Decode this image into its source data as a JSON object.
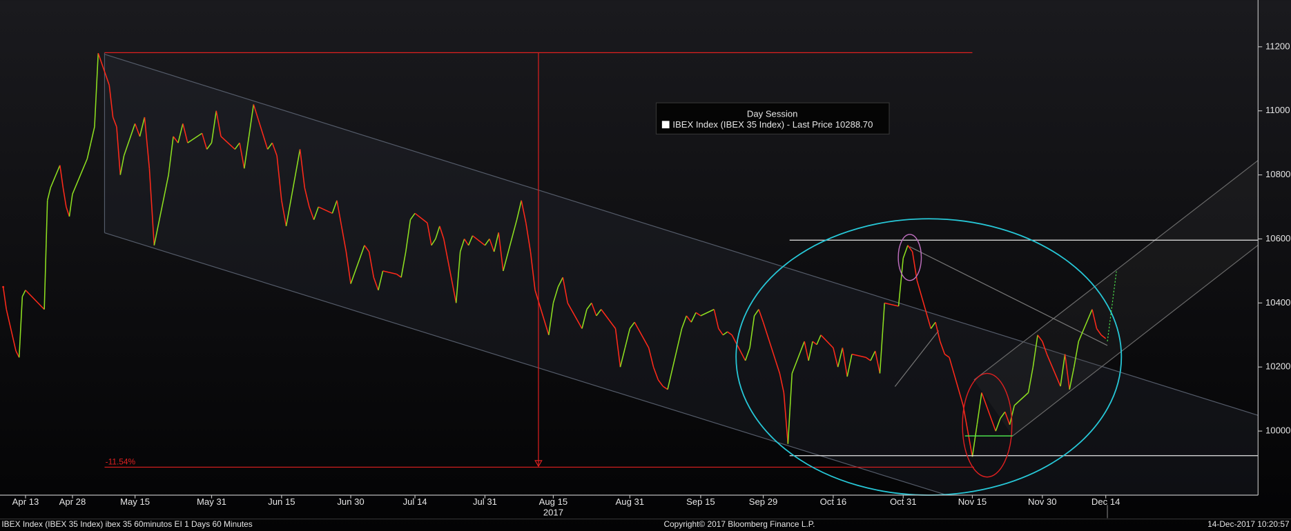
{
  "chart_data": {
    "type": "candle-line",
    "legend_title": "Day Session",
    "annotations": [
      "-11.54%"
    ],
    "x_year_label": "2017",
    "footer": {
      "left": "IBEX Index (IBEX 35 Index) ibex 35 60minutos EI 1 Days 60 Minutes",
      "center": "Copyright© 2017 Bloomberg Finance L.P.",
      "right": "14-Dec-2017 10:20:57"
    },
    "xlim": [
      "2017-04-05",
      "2018-01-17"
    ],
    "xticks": [
      {
        "value": "2017-04-13",
        "label": "Apr 13"
      },
      {
        "value": "2017-04-28",
        "label": "Apr 28"
      },
      {
        "value": "2017-05-15",
        "label": "May 15"
      },
      {
        "value": "2017-05-31",
        "label": "May 31"
      },
      {
        "value": "2017-06-15",
        "label": "Jun 15"
      },
      {
        "value": "2017-06-30",
        "label": "Jun 30"
      },
      {
        "value": "2017-07-14",
        "label": "Jul 14"
      },
      {
        "value": "2017-07-31",
        "label": "Jul 31"
      },
      {
        "value": "2017-08-15",
        "label": "Aug 15"
      },
      {
        "value": "2017-08-31",
        "label": "Aug 31"
      },
      {
        "value": "2017-09-15",
        "label": "Sep 15"
      },
      {
        "value": "2017-09-29",
        "label": "Sep 29"
      },
      {
        "value": "2017-10-16",
        "label": "Oct 16"
      },
      {
        "value": "2017-10-31",
        "label": "Oct 31"
      },
      {
        "value": "2017-11-15",
        "label": "Nov 15"
      },
      {
        "value": "2017-11-30",
        "label": "Nov 30"
      },
      {
        "value": "2017-12-14",
        "label": "Dec 14"
      }
    ],
    "ylim": [
      9800,
      11346
    ],
    "yticks": [
      10000,
      10200,
      10400,
      10600,
      10800,
      11000,
      11200
    ],
    "x": [
      "2017-04-06",
      "2017-04-07",
      "2017-04-10",
      "2017-04-11",
      "2017-04-12",
      "2017-04-13",
      "2017-04-19",
      "2017-04-20",
      "2017-04-21",
      "2017-04-24",
      "2017-04-25",
      "2017-04-26",
      "2017-04-27",
      "2017-04-28",
      "2017-05-02",
      "2017-05-03",
      "2017-05-04",
      "2017-05-05",
      "2017-05-08",
      "2017-05-09",
      "2017-05-10",
      "2017-05-11",
      "2017-05-12",
      "2017-05-15",
      "2017-05-16",
      "2017-05-17",
      "2017-05-18",
      "2017-05-19",
      "2017-05-22",
      "2017-05-23",
      "2017-05-24",
      "2017-05-25",
      "2017-05-26",
      "2017-05-29",
      "2017-05-30",
      "2017-05-31",
      "2017-06-01",
      "2017-06-02",
      "2017-06-05",
      "2017-06-06",
      "2017-06-07",
      "2017-06-08",
      "2017-06-09",
      "2017-06-12",
      "2017-06-13",
      "2017-06-14",
      "2017-06-15",
      "2017-06-16",
      "2017-06-19",
      "2017-06-20",
      "2017-06-21",
      "2017-06-22",
      "2017-06-23",
      "2017-06-26",
      "2017-06-27",
      "2017-06-28",
      "2017-06-29",
      "2017-06-30",
      "2017-07-03",
      "2017-07-04",
      "2017-07-05",
      "2017-07-06",
      "2017-07-07",
      "2017-07-10",
      "2017-07-11",
      "2017-07-12",
      "2017-07-13",
      "2017-07-14",
      "2017-07-17",
      "2017-07-18",
      "2017-07-19",
      "2017-07-20",
      "2017-07-21",
      "2017-07-24",
      "2017-07-25",
      "2017-07-26",
      "2017-07-27",
      "2017-07-28",
      "2017-07-31",
      "2017-08-01",
      "2017-08-02",
      "2017-08-03",
      "2017-08-04",
      "2017-08-07",
      "2017-08-08",
      "2017-08-09",
      "2017-08-10",
      "2017-08-11",
      "2017-08-14",
      "2017-08-15",
      "2017-08-16",
      "2017-08-17",
      "2017-08-18",
      "2017-08-21",
      "2017-08-22",
      "2017-08-23",
      "2017-08-24",
      "2017-08-25",
      "2017-08-28",
      "2017-08-29",
      "2017-08-30",
      "2017-08-31",
      "2017-09-01",
      "2017-09-04",
      "2017-09-05",
      "2017-09-06",
      "2017-09-07",
      "2017-09-08",
      "2017-09-11",
      "2017-09-12",
      "2017-09-13",
      "2017-09-14",
      "2017-09-15",
      "2017-09-18",
      "2017-09-19",
      "2017-09-20",
      "2017-09-21",
      "2017-09-22",
      "2017-09-25",
      "2017-09-26",
      "2017-09-27",
      "2017-09-28",
      "2017-09-29",
      "2017-10-02",
      "2017-10-03",
      "2017-10-04",
      "2017-10-05",
      "2017-10-06",
      "2017-10-09",
      "2017-10-10",
      "2017-10-11",
      "2017-10-12",
      "2017-10-13",
      "2017-10-16",
      "2017-10-17",
      "2017-10-18",
      "2017-10-19",
      "2017-10-20",
      "2017-10-23",
      "2017-10-24",
      "2017-10-25",
      "2017-10-26",
      "2017-10-27",
      "2017-10-30",
      "2017-10-31",
      "2017-11-01",
      "2017-11-02",
      "2017-11-03",
      "2017-11-06",
      "2017-11-07",
      "2017-11-08",
      "2017-11-09",
      "2017-11-10",
      "2017-11-13",
      "2017-11-14",
      "2017-11-15",
      "2017-11-16",
      "2017-11-17",
      "2017-11-20",
      "2017-11-21",
      "2017-11-22",
      "2017-11-23",
      "2017-11-24",
      "2017-11-27",
      "2017-11-28",
      "2017-11-29",
      "2017-11-30",
      "2017-12-01",
      "2017-12-04",
      "2017-12-05",
      "2017-12-06",
      "2017-12-07",
      "2017-12-08",
      "2017-12-11",
      "2017-12-12",
      "2017-12-13",
      "2017-12-14"
    ],
    "series": [
      {
        "name": "IBEX Index (IBEX 35 Index) - Last Price 10288.70",
        "color": "#ff2a1a",
        "up_color": "#8ee020",
        "values": [
          10450,
          10380,
          10250,
          10230,
          10420,
          10440,
          10380,
          10720,
          10760,
          10830,
          10760,
          10700,
          10670,
          10740,
          10850,
          10900,
          10950,
          11180,
          11080,
          10980,
          10950,
          10800,
          10860,
          10960,
          10920,
          10980,
          10820,
          10580,
          10800,
          10920,
          10900,
          10960,
          10900,
          10930,
          10880,
          10900,
          11000,
          10920,
          10880,
          10900,
          10820,
          10920,
          11020,
          10880,
          10900,
          10860,
          10720,
          10640,
          10880,
          10760,
          10700,
          10660,
          10700,
          10680,
          10720,
          10640,
          10560,
          10460,
          10580,
          10560,
          10480,
          10440,
          10500,
          10490,
          10480,
          10560,
          10660,
          10680,
          10650,
          10580,
          10600,
          10640,
          10600,
          10400,
          10560,
          10600,
          10580,
          10610,
          10580,
          10600,
          10560,
          10620,
          10500,
          10660,
          10720,
          10650,
          10560,
          10440,
          10300,
          10400,
          10450,
          10480,
          10400,
          10320,
          10380,
          10400,
          10360,
          10380,
          10320,
          10200,
          10260,
          10320,
          10340,
          10260,
          10200,
          10160,
          10140,
          10130,
          10320,
          10360,
          10340,
          10370,
          10360,
          10380,
          10320,
          10300,
          10310,
          10300,
          10220,
          10260,
          10360,
          10380,
          10340,
          10220,
          10180,
          10120,
          9960,
          10180,
          10280,
          10220,
          10280,
          10270,
          10300,
          10260,
          10200,
          10260,
          10170,
          10240,
          10230,
          10220,
          10250,
          10180,
          10400,
          10390,
          10540,
          10580,
          10560,
          10470,
          10320,
          10340,
          10280,
          10240,
          10230,
          10080,
          10000,
          9920,
          10020,
          10120,
          10000,
          10040,
          10060,
          10020,
          10080,
          10120,
          10200,
          10300,
          10280,
          10240,
          10140,
          10240,
          10130,
          10200,
          10280,
          10380,
          10320,
          10300,
          10288.7
        ]
      }
    ]
  }
}
